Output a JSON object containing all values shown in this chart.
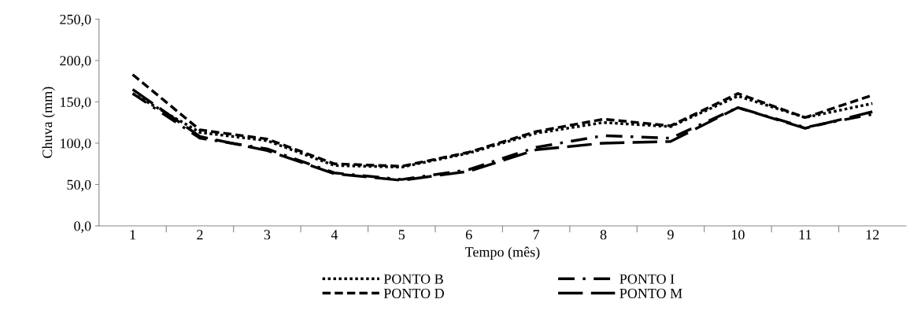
{
  "chart_data": {
    "type": "line",
    "xlabel": "Tempo (mês)",
    "ylabel": "Chuva (mm)",
    "categories": [
      "1",
      "2",
      "3",
      "4",
      "5",
      "6",
      "7",
      "8",
      "9",
      "10",
      "11",
      "12"
    ],
    "series": [
      {
        "name": "PONTO B",
        "color": "#000000",
        "line_style": "dotted",
        "values": [
          160,
          113,
          103,
          73,
          71,
          88,
          112,
          125,
          120,
          157,
          131,
          148
        ]
      },
      {
        "name": "PONTO D",
        "color": "#000000",
        "line_style": "dashed",
        "values": [
          183,
          116,
          105,
          75,
          72,
          89,
          114,
          129,
          121,
          160,
          131,
          158
        ]
      },
      {
        "name": "PONTO I",
        "color": "#000000",
        "line_style": "dashdot",
        "values": [
          160,
          106,
          93,
          64,
          56,
          68,
          95,
          109,
          106,
          143,
          119,
          135
        ]
      },
      {
        "name": "PONTO M",
        "color": "#000000",
        "line_style": "longdash",
        "values": [
          165,
          108,
          91,
          63,
          55,
          66,
          92,
          100,
          102,
          143,
          118,
          138
        ]
      }
    ],
    "ylim": [
      0,
      250
    ],
    "yticks": [
      {
        "value": 0,
        "label": "0,0"
      },
      {
        "value": 50,
        "label": "50,0"
      },
      {
        "value": 100,
        "label": "100,0"
      },
      {
        "value": 150,
        "label": "150,0"
      },
      {
        "value": 200,
        "label": "200,0"
      },
      {
        "value": 250,
        "label": "250,0"
      }
    ],
    "grid": false,
    "legend": "bottom",
    "marker": "none"
  }
}
